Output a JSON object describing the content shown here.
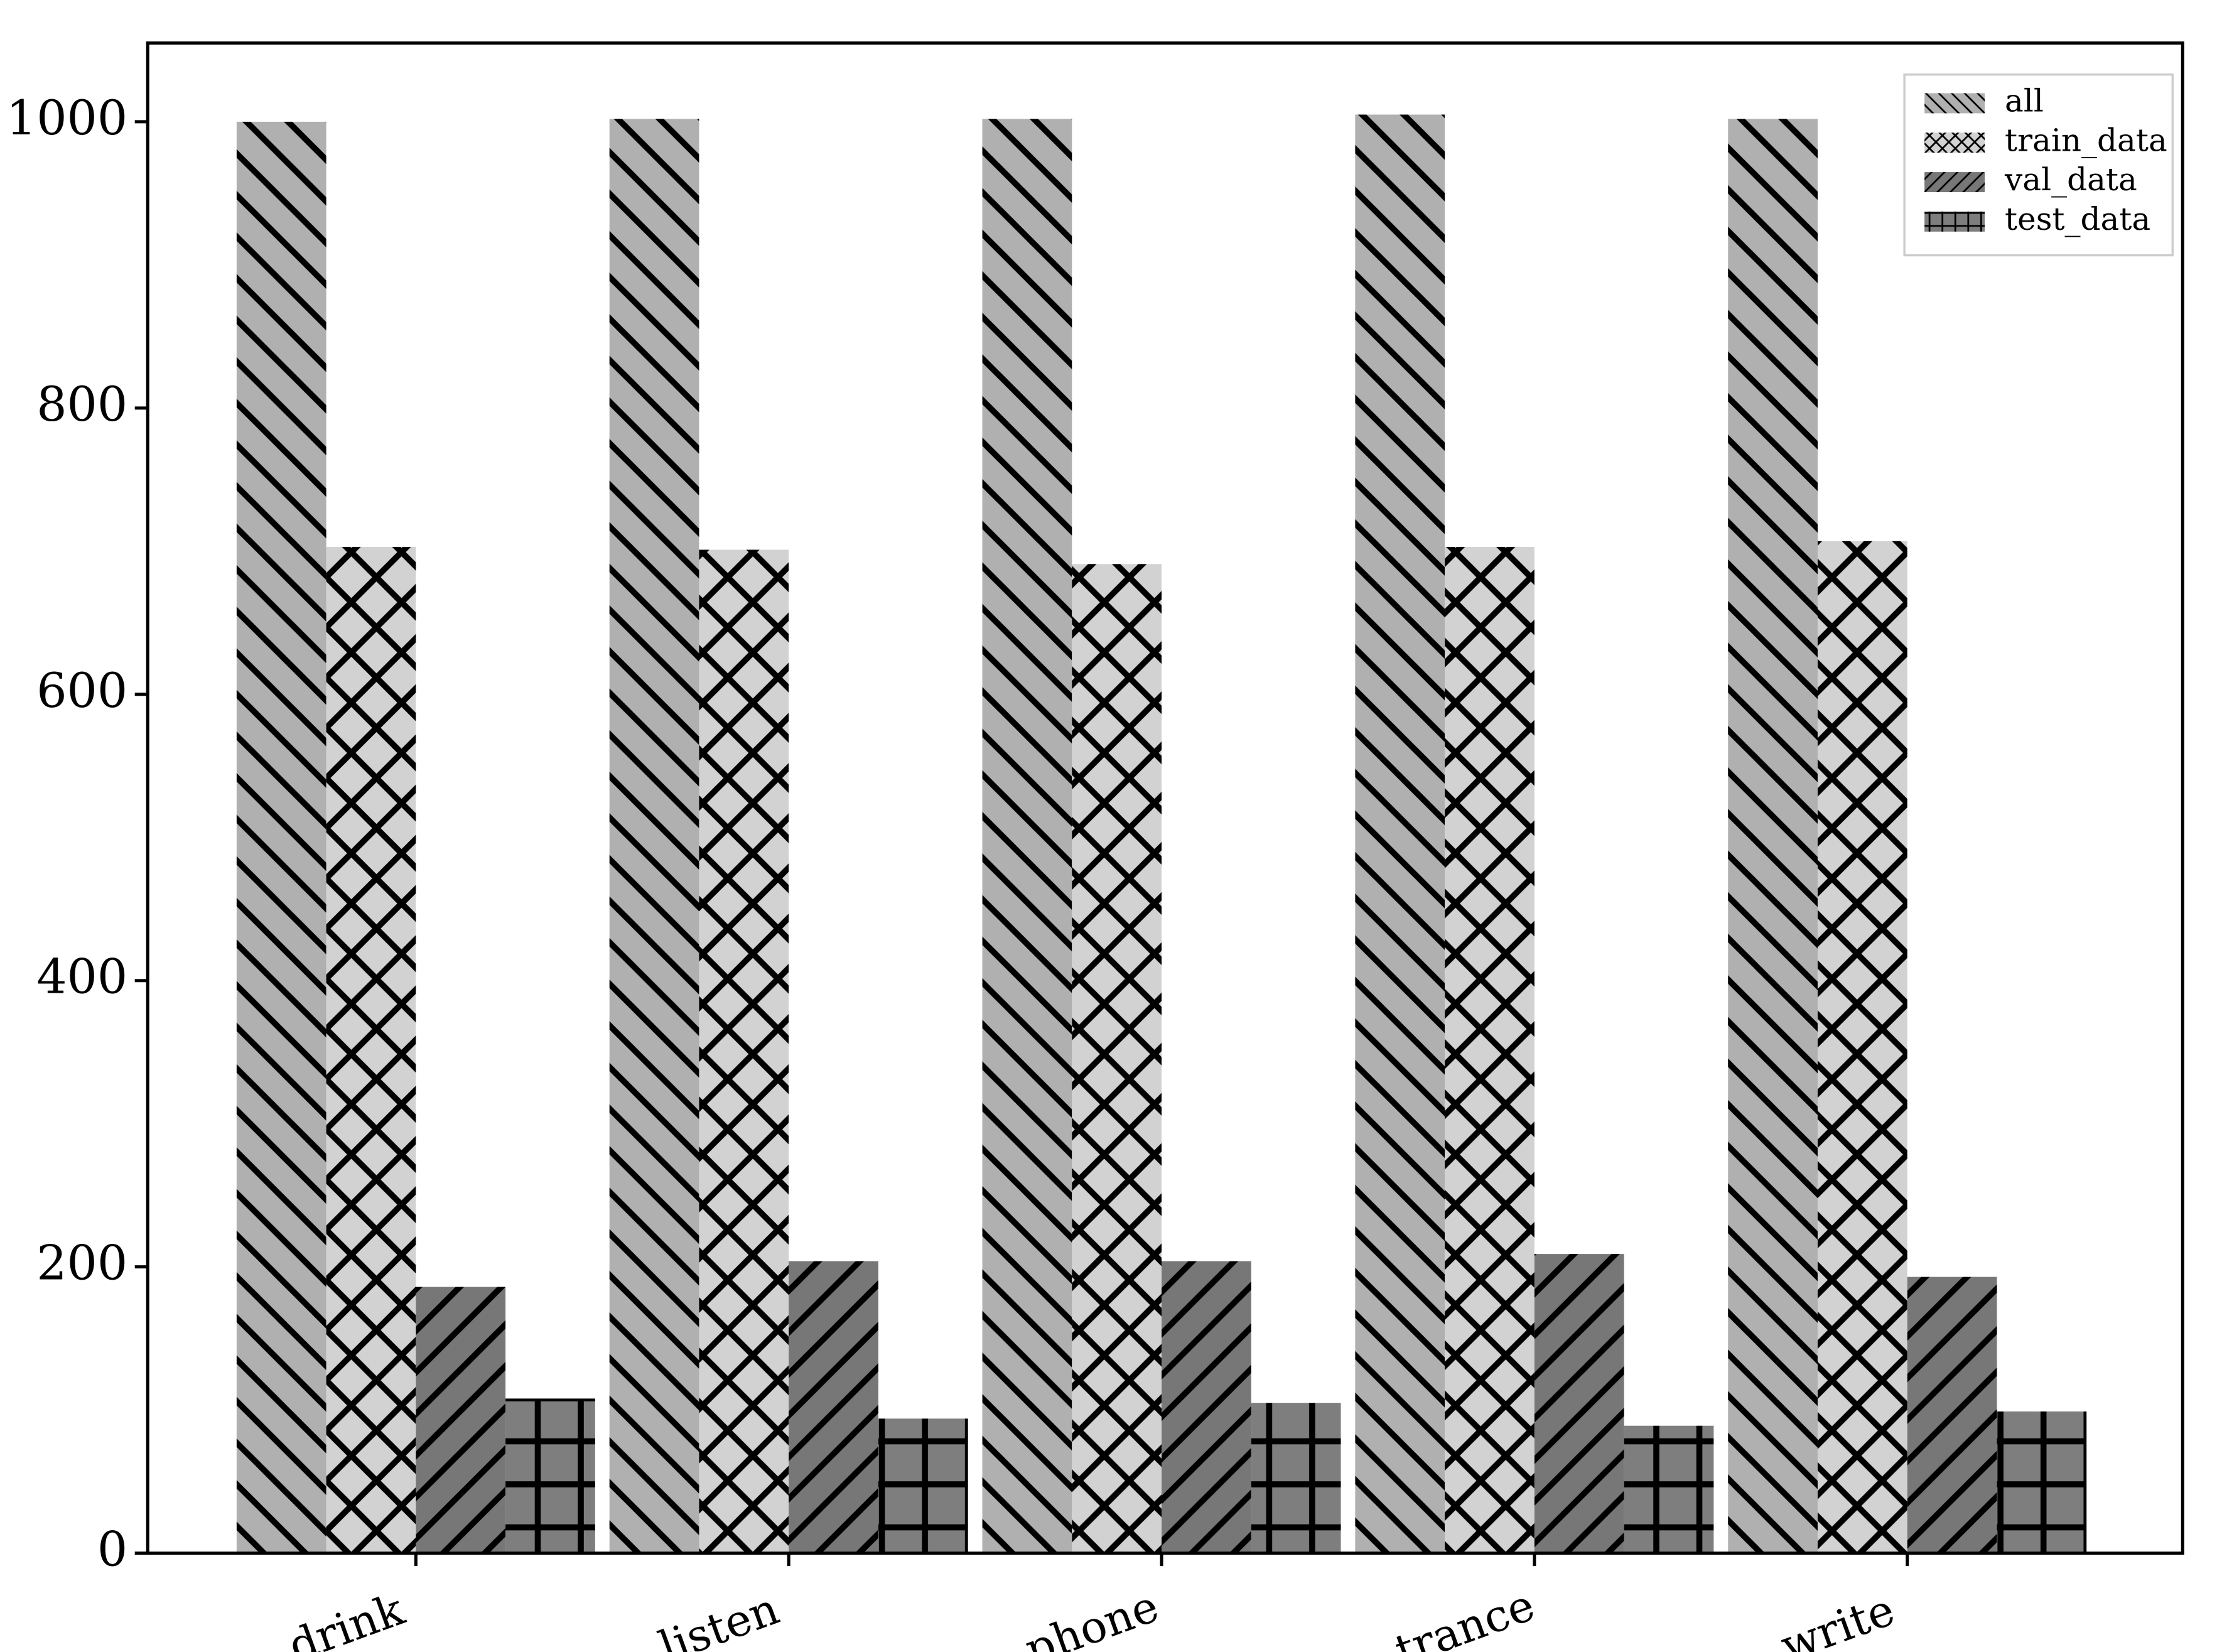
{
  "chart_data": {
    "type": "bar",
    "categories": [
      "drink",
      "listen",
      "phone",
      "trance",
      "write"
    ],
    "series": [
      {
        "name": "all",
        "color": "#b0b0b0",
        "hatch": "\\",
        "values": [
          1000,
          1002,
          1002,
          1005,
          1002
        ]
      },
      {
        "name": "train_data",
        "color": "#d2d2d2",
        "hatch": "x",
        "values": [
          703,
          701,
          691,
          703,
          707
        ]
      },
      {
        "name": "val_data",
        "color": "#777777",
        "hatch": "/",
        "values": [
          186,
          204,
          204,
          209,
          193
        ]
      },
      {
        "name": "test_data",
        "color": "#7e7e7e",
        "hatch": "+",
        "values": [
          108,
          94,
          105,
          89,
          99
        ]
      }
    ],
    "ylim": [
      0,
      1055
    ],
    "yticks": [
      0,
      200,
      400,
      600,
      800,
      1000
    ],
    "legend": "upper right"
  }
}
